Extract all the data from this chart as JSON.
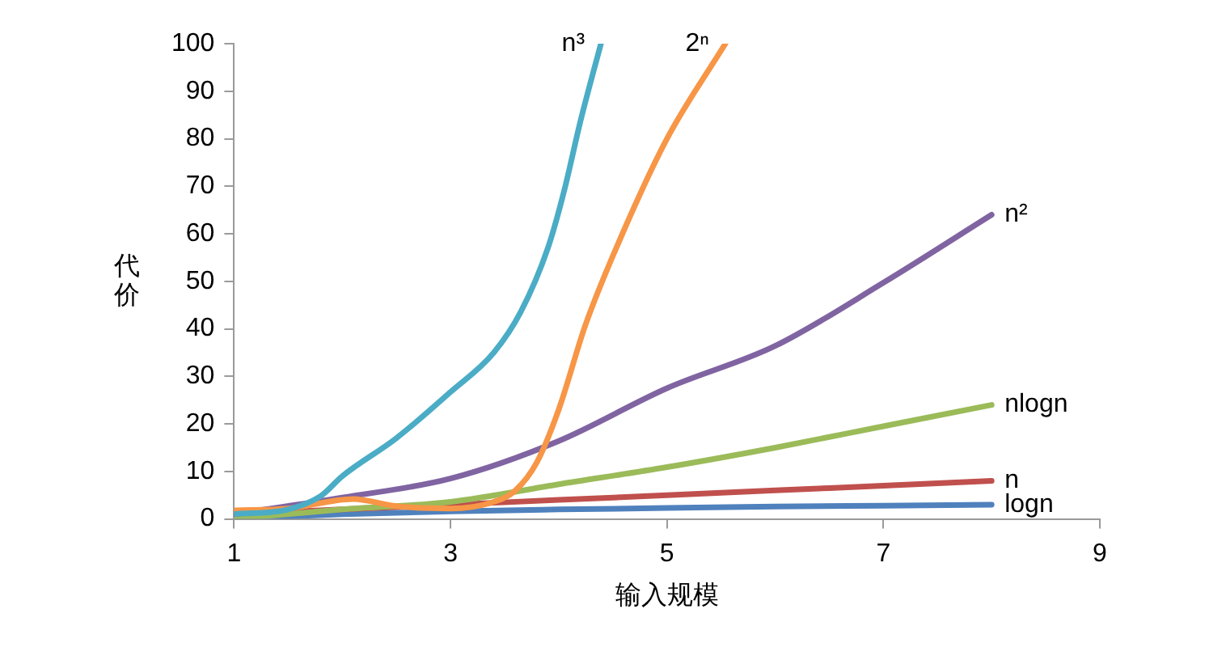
{
  "chart_data": {
    "type": "line",
    "xlabel": "输入规模",
    "ylabel": "代价",
    "xlim": [
      1,
      9
    ],
    "xticks": [
      1,
      3,
      5,
      7,
      9
    ],
    "ylim": [
      0,
      100
    ],
    "yticks": [
      0,
      10,
      20,
      30,
      40,
      50,
      60,
      70,
      80,
      90,
      100
    ],
    "grid": false,
    "legend": false,
    "marker": "none",
    "series": [
      {
        "name": "n³",
        "color": "#4bacc6",
        "x": [
          1,
          1.5,
          1.8,
          2,
          2.5,
          3,
          3.4,
          3.65,
          3.9,
          4.05,
          4.2,
          4.39
        ],
        "values": [
          1,
          2,
          4.8,
          9,
          17,
          26.7,
          35,
          43.6,
          57,
          69,
          83.6,
          100
        ]
      },
      {
        "name": "2ⁿ",
        "color": "#f79646",
        "x": [
          1,
          1.5,
          2.1,
          2.5,
          3,
          3.4,
          3.6,
          3.8,
          4,
          4.25,
          4.6,
          5,
          5.54
        ],
        "values": [
          1.8,
          2.2,
          4.2,
          2.7,
          2.2,
          3.6,
          6,
          12,
          23,
          41,
          60.6,
          80,
          100
        ]
      },
      {
        "name": "n²",
        "color": "#8064a2",
        "x": [
          1,
          2,
          3,
          4,
          5,
          6,
          7,
          8
        ],
        "values": [
          1,
          4.5,
          8.5,
          16.4,
          27.5,
          36.4,
          49.7,
          64
        ]
      },
      {
        "name": "nlogn",
        "color": "#9bbb59",
        "x": [
          1,
          2,
          3,
          4,
          5,
          6,
          7,
          8
        ],
        "values": [
          0,
          2,
          3.6,
          7.3,
          10.9,
          15,
          19.5,
          24
        ]
      },
      {
        "name": "n",
        "color": "#c0504d",
        "x": [
          1,
          2,
          3,
          4,
          5,
          6,
          7,
          8
        ],
        "values": [
          1,
          2,
          3,
          4,
          5,
          6,
          7,
          8
        ]
      },
      {
        "name": "logn",
        "color": "#4f81bd",
        "x": [
          1,
          2,
          3,
          4,
          5,
          6,
          7,
          8
        ],
        "values": [
          0,
          1,
          1.6,
          2,
          2.3,
          2.6,
          2.8,
          3
        ]
      }
    ]
  }
}
